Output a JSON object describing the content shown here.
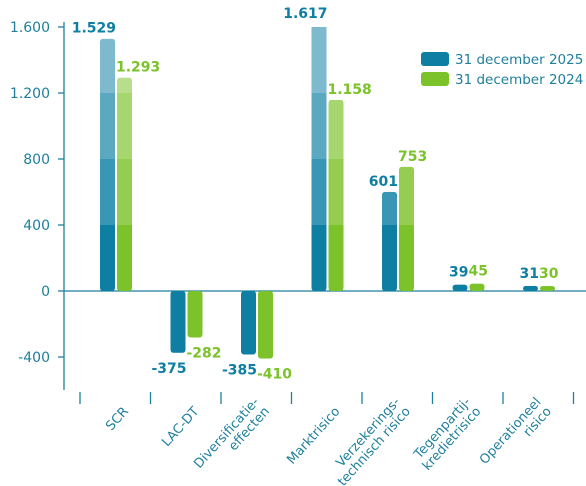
{
  "chart_data": {
    "type": "bar",
    "categories": [
      [
        "SCR"
      ],
      [
        "LAC-DT"
      ],
      [
        "Diversificatie-",
        "effecten"
      ],
      [
        "Marktrisico"
      ],
      [
        "Verzekerings-",
        "technisch risico"
      ],
      [
        "Tegenpartij-",
        "kredietrisico"
      ],
      [
        "Operationeel",
        "risico"
      ]
    ],
    "series": [
      {
        "name": "31 december 2025",
        "color": "#0e7fa3",
        "values": [
          1529,
          -375,
          -385,
          1617,
          601,
          39,
          31
        ],
        "labels": [
          "1.529",
          "-375",
          "-385",
          "1.617",
          "601",
          "39",
          "31"
        ]
      },
      {
        "name": "31 december 2024",
        "color": "#7cc22a",
        "values": [
          1293,
          -282,
          -410,
          1158,
          753,
          45,
          30
        ],
        "labels": [
          "1.293",
          "-282",
          "-410",
          "1.158",
          "753",
          "45",
          "30"
        ]
      }
    ],
    "yticks": [
      1600,
      1200,
      800,
      400,
      0,
      -400
    ],
    "ytick_labels": [
      "1.600",
      "1.200",
      "800",
      "400",
      "0",
      "-400"
    ],
    "ylim": [
      -700,
      1650
    ],
    "legend_position": "top-right",
    "grid": false
  }
}
